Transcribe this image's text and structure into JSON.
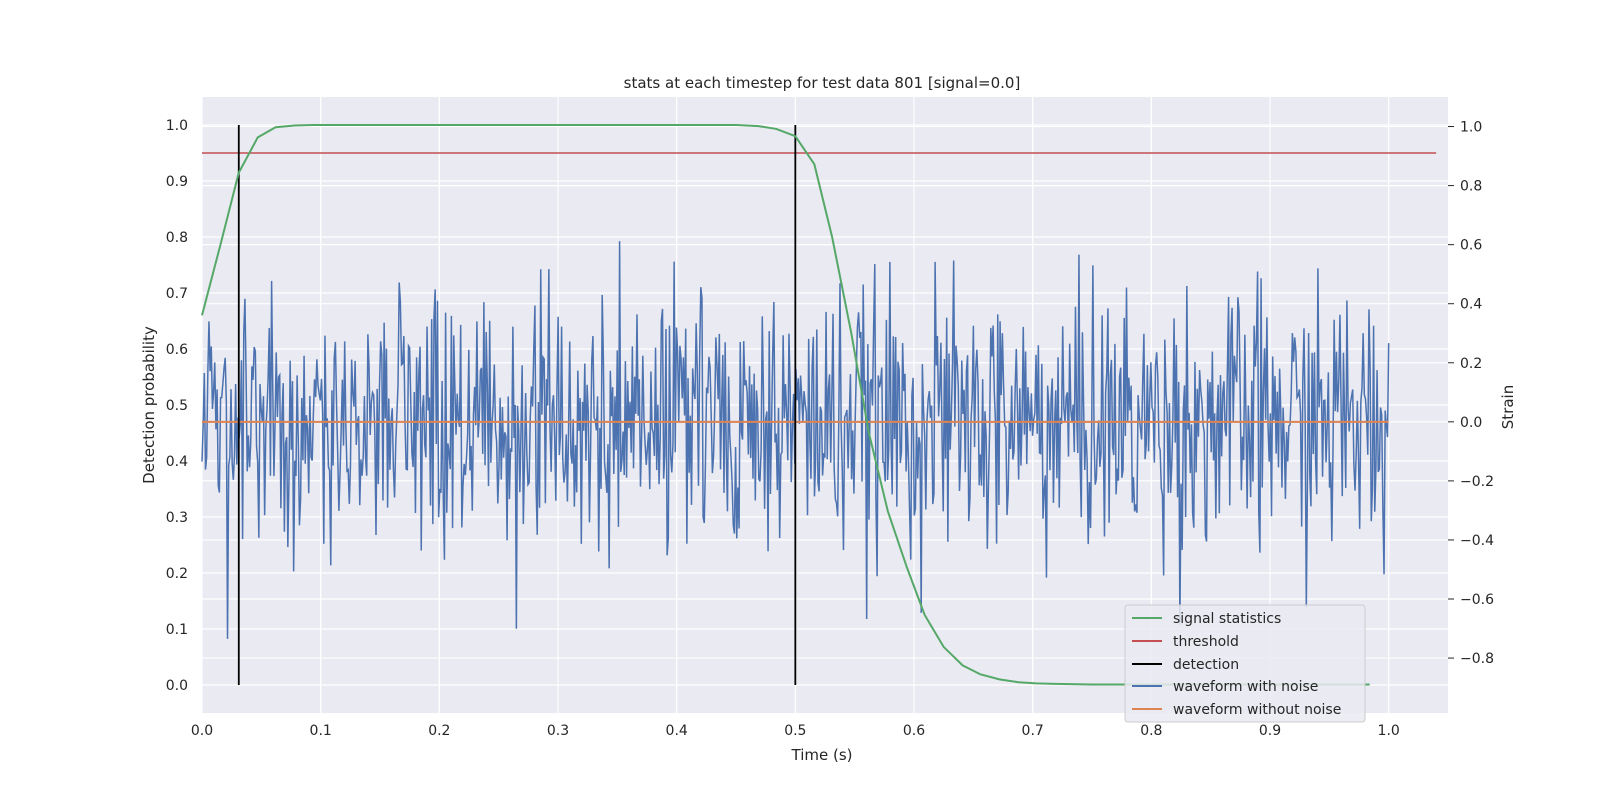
{
  "chart_data": {
    "type": "line",
    "title": "stats at each timestep for test data 801 [signal=0.0]",
    "xlabel": "Time (s)",
    "ylabel": "Detection probability",
    "y2label": "Strain",
    "xlim": [
      0.0,
      1.05
    ],
    "ylim": [
      -0.05,
      1.05
    ],
    "y2lim": [
      -0.986,
      1.1
    ],
    "grid": true,
    "legend_position": "lower-right",
    "xticks": [
      "0.0",
      "0.1",
      "0.2",
      "0.3",
      "0.4",
      "0.5",
      "0.6",
      "0.7",
      "0.8",
      "0.9",
      "1.0"
    ],
    "yticks": [
      "0.0",
      "0.1",
      "0.2",
      "0.3",
      "0.4",
      "0.5",
      "0.6",
      "0.7",
      "0.8",
      "0.9",
      "1.0"
    ],
    "y2ticks": [
      "−0.8",
      "−0.6",
      "−0.4",
      "−0.2",
      "0.0",
      "0.2",
      "0.4",
      "0.6",
      "0.8",
      "1.0"
    ],
    "y2tick_values": [
      -0.8,
      -0.6,
      -0.4,
      -0.2,
      0.0,
      0.2,
      0.4,
      0.6,
      0.8,
      1.0
    ],
    "series": [
      {
        "name": "signal statistics",
        "color": "#55a868",
        "axis": "left",
        "x": [
          0.0,
          0.016,
          0.031,
          0.047,
          0.062,
          0.078,
          0.094,
          0.109,
          0.125,
          0.2,
          0.3,
          0.4,
          0.45,
          0.469,
          0.484,
          0.5,
          0.516,
          0.531,
          0.547,
          0.562,
          0.578,
          0.594,
          0.609,
          0.625,
          0.641,
          0.656,
          0.672,
          0.688,
          0.703,
          0.719,
          0.75,
          0.8,
          0.9,
          0.984
        ],
        "y": [
          0.66,
          0.79,
          0.915,
          0.978,
          0.996,
          0.999,
          1.0,
          1.0,
          1.0,
          1.0,
          1.0,
          1.0,
          1.0,
          0.998,
          0.993,
          0.98,
          0.93,
          0.8,
          0.63,
          0.45,
          0.31,
          0.21,
          0.125,
          0.068,
          0.035,
          0.019,
          0.01,
          0.005,
          0.003,
          0.002,
          0.001,
          0.001,
          0.001,
          0.001
        ]
      },
      {
        "name": "threshold",
        "color": "#c44e52",
        "axis": "left",
        "x": [
          0.0,
          1.04
        ],
        "y": [
          0.95,
          0.95
        ]
      },
      {
        "name": "detection",
        "color": "#000000",
        "axis": "left",
        "type": "vlines",
        "x": [
          0.031,
          0.5
        ],
        "ymin": 0.0,
        "ymax": 1.0
      },
      {
        "name": "waveform with noise",
        "color": "#4c72b0",
        "axis": "right",
        "x_start": 0.0,
        "x_end": 1.0,
        "count": 1024,
        "std": 0.22,
        "y": []
      },
      {
        "name": "waveform without noise",
        "color": "#dd8452",
        "axis": "right",
        "x": [
          0.0,
          1.0
        ],
        "y": [
          0.0,
          0.0
        ]
      }
    ]
  }
}
